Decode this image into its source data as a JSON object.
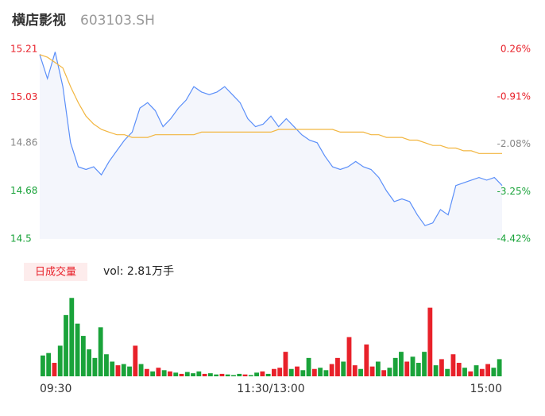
{
  "header": {
    "name": "横店影视",
    "code": "603103.SH"
  },
  "chart_data": [
    {
      "type": "line",
      "x": [
        0,
        4,
        8,
        12,
        16,
        20,
        24,
        28,
        32,
        36,
        40,
        44,
        48,
        52,
        56,
        60,
        64,
        68,
        72,
        76,
        80,
        84,
        88,
        92,
        96,
        100,
        104,
        108,
        112,
        116,
        120,
        124,
        128,
        132,
        136,
        140,
        144,
        148,
        152,
        156,
        160,
        164,
        168,
        172,
        176,
        180,
        184,
        188,
        192,
        196,
        200,
        204,
        208,
        212,
        216,
        220,
        224,
        228,
        232,
        236,
        240
      ],
      "xlim": [
        0,
        240
      ],
      "series": [
        {
          "color": "#5b8ff9",
          "fill": "#f4f6fc",
          "values": [
            15.19,
            15.1,
            15.2,
            15.07,
            14.86,
            14.77,
            14.76,
            14.77,
            14.74,
            14.79,
            14.83,
            14.87,
            14.9,
            14.99,
            15.01,
            14.98,
            14.92,
            14.95,
            14.99,
            15.02,
            15.07,
            15.05,
            15.04,
            15.05,
            15.07,
            15.04,
            15.01,
            14.95,
            14.92,
            14.93,
            14.96,
            14.92,
            14.95,
            14.92,
            14.89,
            14.87,
            14.86,
            14.81,
            14.77,
            14.76,
            14.77,
            14.79,
            14.77,
            14.76,
            14.73,
            14.68,
            14.64,
            14.65,
            14.64,
            14.59,
            14.55,
            14.56,
            14.61,
            14.59,
            14.7,
            14.71,
            14.72,
            14.73,
            14.72,
            14.73,
            14.7
          ]
        },
        {
          "color": "#f2b640",
          "values": [
            15.19,
            15.18,
            15.16,
            15.14,
            15.07,
            15.01,
            14.96,
            14.93,
            14.91,
            14.9,
            14.89,
            14.89,
            14.88,
            14.88,
            14.88,
            14.89,
            14.89,
            14.89,
            14.89,
            14.89,
            14.89,
            14.9,
            14.9,
            14.9,
            14.9,
            14.9,
            14.9,
            14.9,
            14.9,
            14.9,
            14.9,
            14.91,
            14.91,
            14.91,
            14.91,
            14.91,
            14.91,
            14.91,
            14.91,
            14.9,
            14.9,
            14.9,
            14.9,
            14.89,
            14.89,
            14.88,
            14.88,
            14.88,
            14.87,
            14.87,
            14.86,
            14.85,
            14.85,
            14.84,
            14.84,
            14.83,
            14.83,
            14.82,
            14.82,
            14.82,
            14.82
          ]
        }
      ],
      "ylim": [
        14.5,
        15.21
      ],
      "yticks": [
        14.5,
        14.68,
        14.86,
        15.03,
        15.21
      ],
      "y2lim": [
        -4.42,
        0.26
      ],
      "y2ticks": [
        {
          "value": -4.42,
          "label": "-4.42%"
        },
        {
          "value": -3.25,
          "label": "-3.25%"
        },
        {
          "value": -2.08,
          "label": "-2.08%"
        },
        {
          "value": -0.91,
          "label": "-0.91%"
        },
        {
          "value": 0.26,
          "label": "0.26%"
        }
      ],
      "up_color": "#e8212a",
      "flat_color": "#888888",
      "down_color": "#1aa33a"
    },
    {
      "type": "bar",
      "title": "日成交量",
      "subtitle": "vol: 2.81万手",
      "x": [
        0,
        3,
        6,
        9,
        12,
        15,
        18,
        21,
        24,
        27,
        30,
        33,
        36,
        39,
        42,
        45,
        48,
        51,
        54,
        57,
        60,
        63,
        66,
        69,
        72,
        75,
        78,
        81,
        84,
        87,
        90,
        93,
        96,
        99,
        102,
        105,
        108,
        111,
        114,
        117,
        120,
        123,
        126,
        129,
        132,
        135,
        138,
        141,
        144,
        147,
        150,
        153,
        156,
        159,
        162,
        165,
        168,
        171,
        174,
        177,
        180,
        183,
        186,
        189,
        192,
        195,
        198,
        201,
        204,
        207,
        210,
        213,
        216,
        219,
        222,
        225,
        228,
        231,
        234,
        237
      ],
      "xlim": [
        0,
        240
      ],
      "values": [
        170,
        190,
        110,
        250,
        500,
        640,
        430,
        330,
        220,
        150,
        400,
        180,
        120,
        90,
        100,
        80,
        250,
        100,
        60,
        40,
        70,
        50,
        40,
        30,
        20,
        35,
        25,
        40,
        20,
        25,
        15,
        20,
        15,
        10,
        20,
        15,
        10,
        30,
        40,
        20,
        60,
        70,
        200,
        60,
        80,
        50,
        150,
        60,
        70,
        50,
        100,
        150,
        120,
        320,
        90,
        60,
        260,
        80,
        120,
        50,
        70,
        150,
        200,
        120,
        160,
        110,
        200,
        560,
        90,
        140,
        60,
        180,
        110,
        70,
        40,
        90,
        60,
        100,
        70,
        140
      ],
      "colors": [
        "#1aa33a",
        "#1aa33a",
        "#e8212a",
        "#1aa33a",
        "#1aa33a",
        "#1aa33a",
        "#1aa33a",
        "#1aa33a",
        "#1aa33a",
        "#1aa33a",
        "#1aa33a",
        "#1aa33a",
        "#1aa33a",
        "#e8212a",
        "#1aa33a",
        "#1aa33a",
        "#e8212a",
        "#1aa33a",
        "#e8212a",
        "#1aa33a",
        "#e8212a",
        "#1aa33a",
        "#e8212a",
        "#1aa33a",
        "#e8212a",
        "#1aa33a",
        "#1aa33a",
        "#1aa33a",
        "#e8212a",
        "#1aa33a",
        "#1aa33a",
        "#e8212a",
        "#1aa33a",
        "#1aa33a",
        "#1aa33a",
        "#e8212a",
        "#1aa33a",
        "#1aa33a",
        "#e8212a",
        "#1aa33a",
        "#e8212a",
        "#e8212a",
        "#e8212a",
        "#1aa33a",
        "#e8212a",
        "#1aa33a",
        "#1aa33a",
        "#e8212a",
        "#1aa33a",
        "#1aa33a",
        "#e8212a",
        "#e8212a",
        "#1aa33a",
        "#e8212a",
        "#e8212a",
        "#1aa33a",
        "#e8212a",
        "#e8212a",
        "#1aa33a",
        "#e8212a",
        "#1aa33a",
        "#1aa33a",
        "#1aa33a",
        "#e8212a",
        "#1aa33a",
        "#1aa33a",
        "#1aa33a",
        "#e8212a",
        "#1aa33a",
        "#e8212a",
        "#1aa33a",
        "#e8212a",
        "#e8212a",
        "#1aa33a",
        "#e8212a",
        "#1aa33a",
        "#e8212a",
        "#e8212a",
        "#1aa33a",
        "#1aa33a"
      ],
      "ylim": [
        0,
        700
      ],
      "xticks": [
        {
          "value": 0,
          "label": "09:30"
        },
        {
          "value": 120,
          "label": "11:30/13:00"
        },
        {
          "value": 240,
          "label": "15:00"
        }
      ]
    }
  ]
}
